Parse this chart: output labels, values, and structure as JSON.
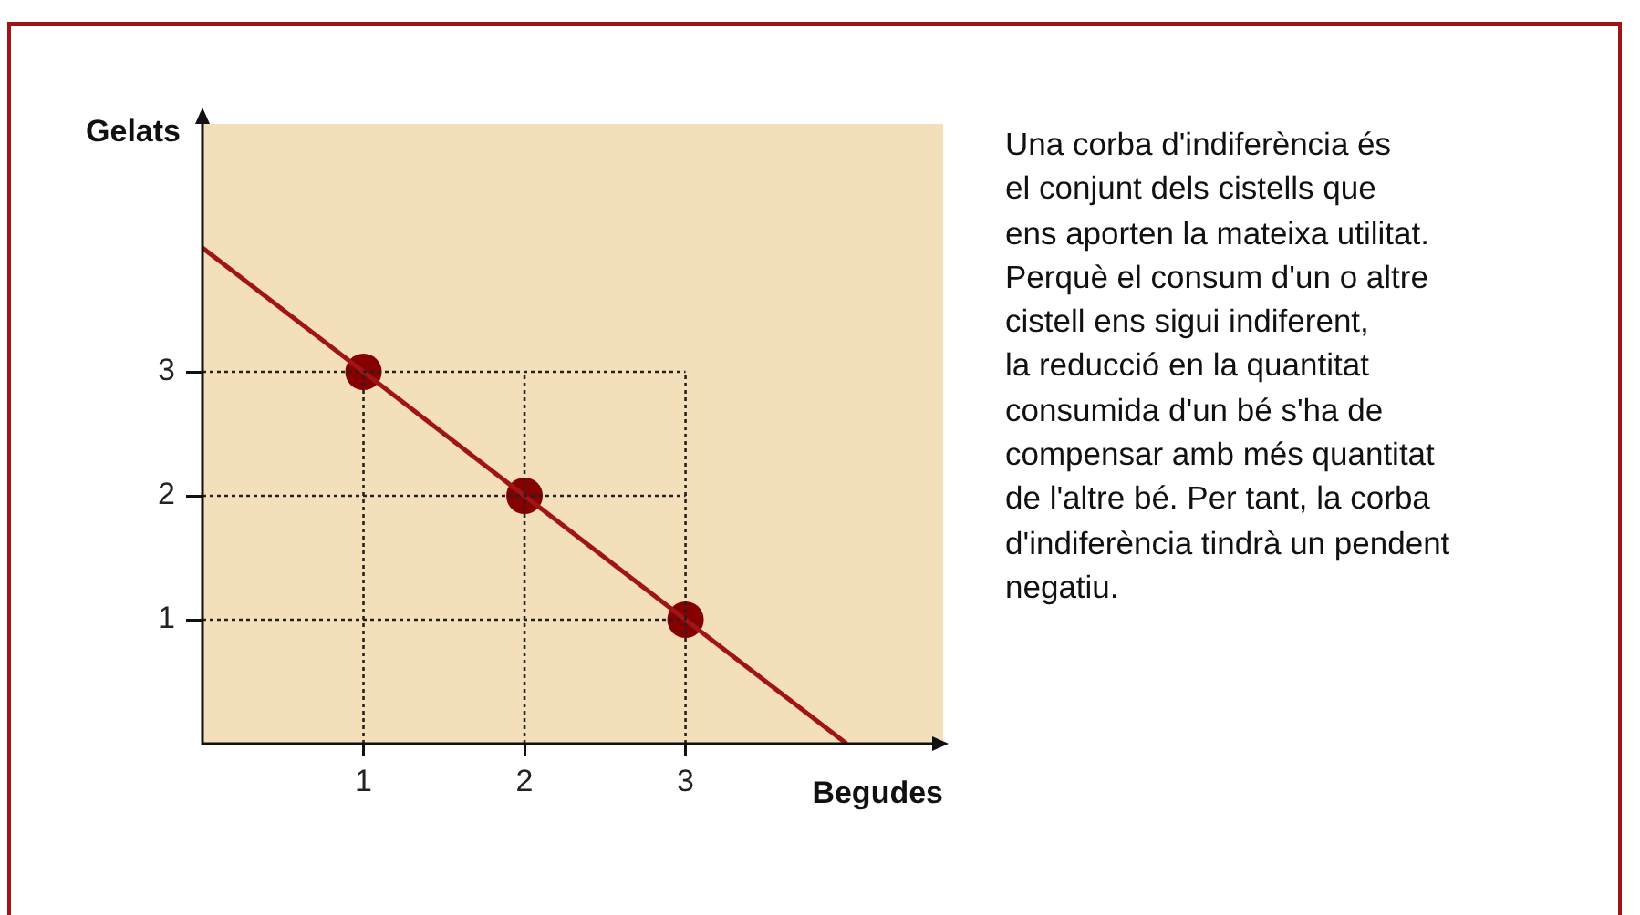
{
  "chart_data": {
    "type": "line",
    "xlabel": "Begudes",
    "ylabel": "Gelats",
    "series": [
      {
        "x": [
          0,
          3
        ],
        "values": [
          3,
          3
        ],
        "color": "#222222",
        "marker": "none",
        "line_style": "dotted"
      },
      {
        "x": [
          0,
          3
        ],
        "values": [
          2,
          2
        ],
        "color": "#222222",
        "marker": "none",
        "line_style": "dotted"
      },
      {
        "x": [
          0,
          3
        ],
        "values": [
          1,
          1
        ],
        "color": "#222222",
        "marker": "none",
        "line_style": "dotted"
      },
      {
        "x": [
          1,
          1
        ],
        "values": [
          0,
          3
        ],
        "color": "#222222",
        "marker": "none",
        "line_style": "dotted"
      },
      {
        "x": [
          2,
          2
        ],
        "values": [
          0,
          3
        ],
        "color": "#222222",
        "marker": "none",
        "line_style": "dotted"
      },
      {
        "x": [
          3,
          3
        ],
        "values": [
          0,
          3
        ],
        "color": "#222222",
        "marker": "none",
        "line_style": "dotted"
      },
      {
        "x": [
          0,
          4
        ],
        "values": [
          4,
          0
        ],
        "color": "#a01414",
        "marker": "none",
        "line_style": "solid"
      },
      {
        "type": "scatter",
        "x": [
          1,
          2,
          3
        ],
        "values": [
          3,
          2,
          1
        ],
        "color": "#850000",
        "marker": "circle"
      }
    ],
    "xlim": [
      0,
      4.6
    ],
    "ylim": [
      0,
      5
    ],
    "xticks": [
      1,
      2,
      3
    ],
    "yticks": [
      1,
      2,
      3
    ],
    "legend": false,
    "annotations": [
      "Una corba d'indiferència és\nel conjunt dels cistells que\nens aporten la mateixa utilitat.\nPerquè el consum d'un o altre\ncistell ens sigui indiferent,\nla reducció en la quantitat\nconsumida d'un bé s'ha de\ncompensar amb més quantitat\nde l'altre bé. Per tant, la corba\nd'indiferència tindrà un pendent\nnegatiu."
    ]
  }
}
